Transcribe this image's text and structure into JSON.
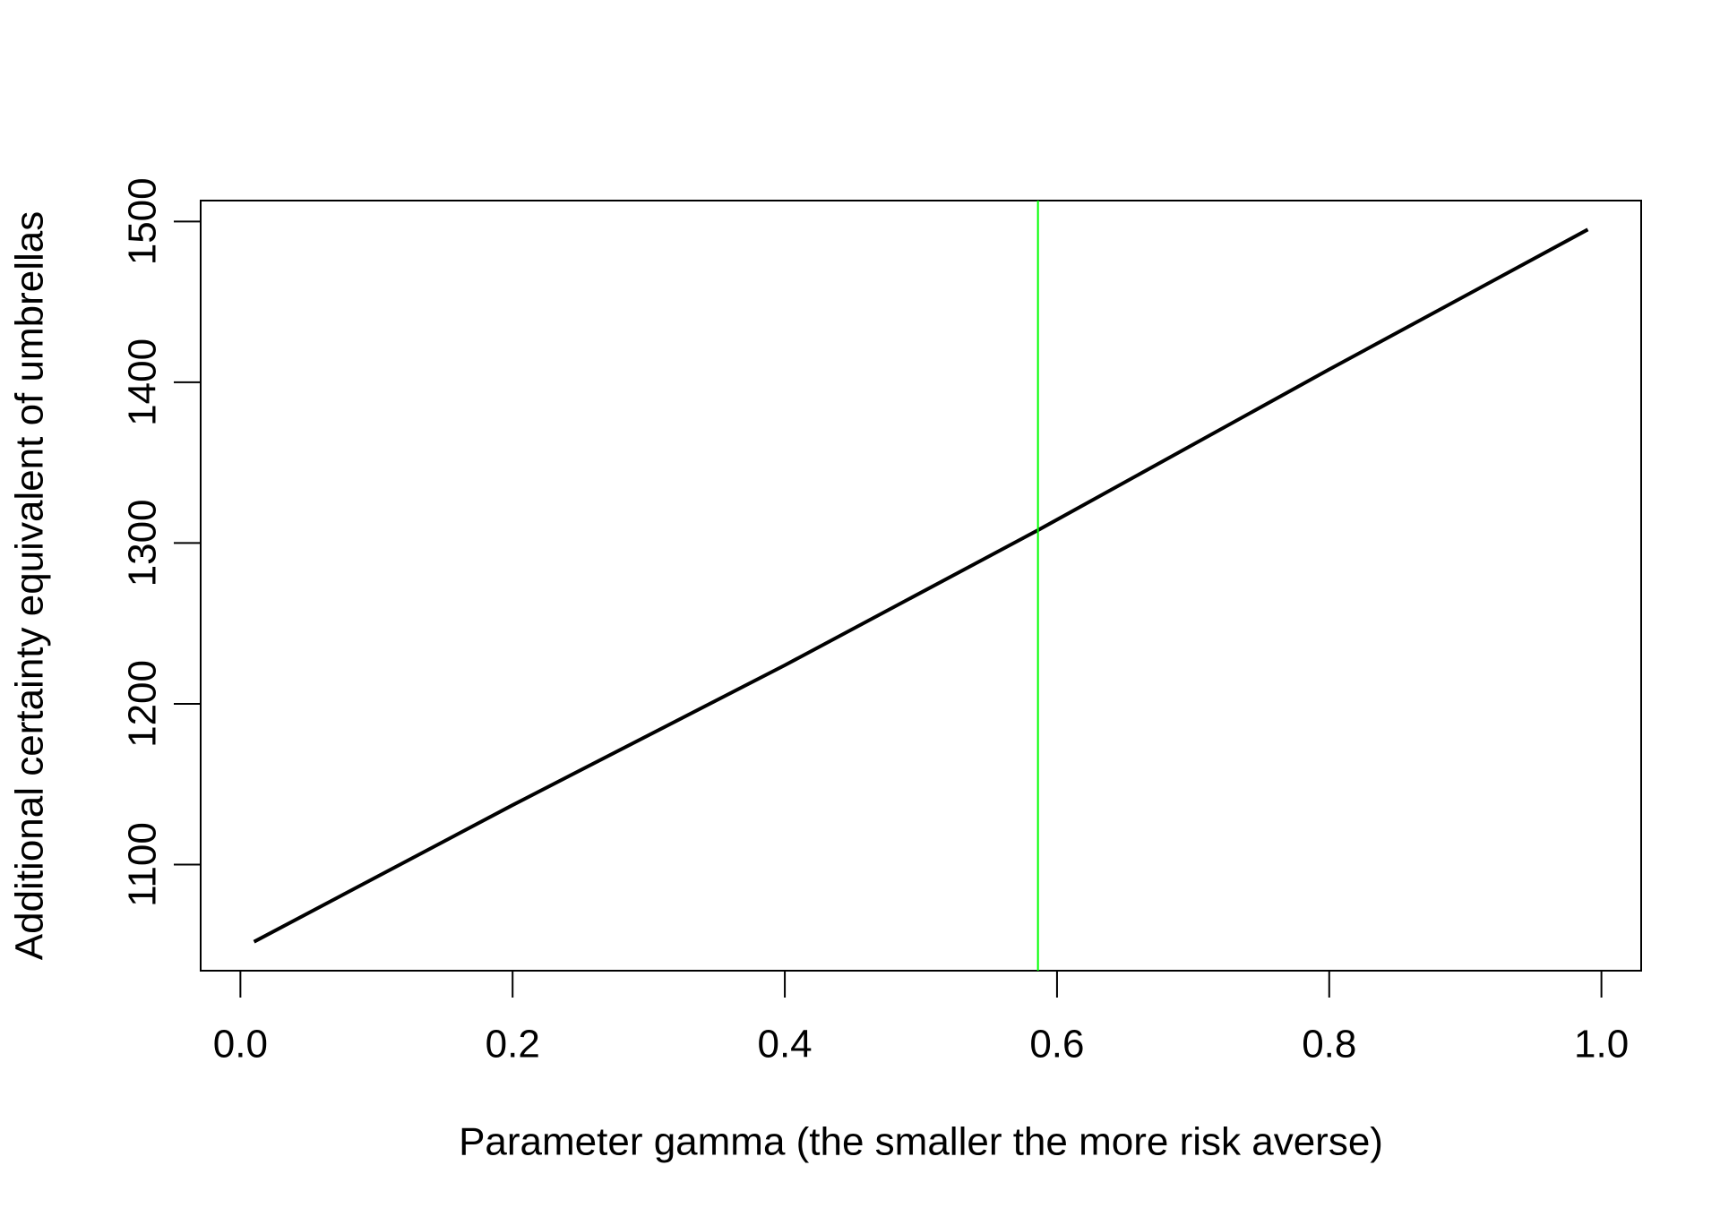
{
  "chart_data": {
    "type": "line",
    "x_label": "Parameter gamma (the smaller the more risk averse)",
    "y_label": "Additional certainty equivalent of umbrellas",
    "x": [
      0.01,
      0.2,
      0.4,
      0.586,
      0.8,
      0.99
    ],
    "series": [
      {
        "color": "#000000",
        "values": [
          1052,
          1137,
          1224,
          1308,
          1408,
          1495
        ]
      }
    ],
    "vline": {
      "x": 0.586,
      "color": "#00ff00"
    },
    "xlim": [
      -0.0292,
      1.0292
    ],
    "ylim": [
      1034,
      1513
    ],
    "xticks": [
      {
        "value": 0,
        "label": "0.0"
      },
      0.2,
      0.4,
      0.6,
      0.8,
      {
        "value": 1,
        "label": "1.0"
      }
    ],
    "yticks": [
      1100,
      1200,
      1300,
      1400,
      1500
    ]
  }
}
